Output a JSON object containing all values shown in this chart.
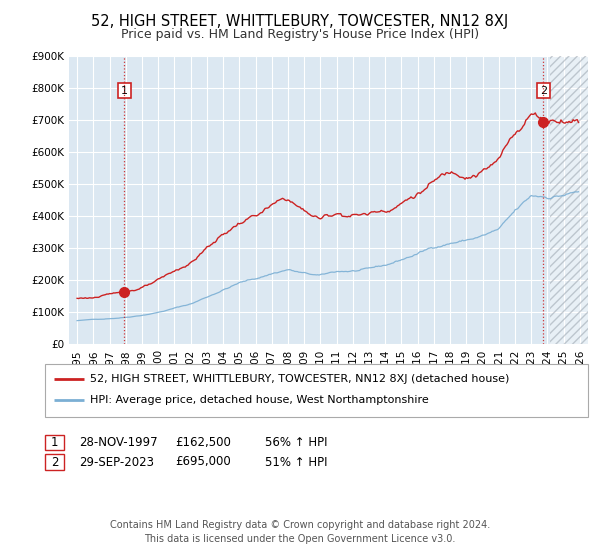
{
  "title": "52, HIGH STREET, WHITTLEBURY, TOWCESTER, NN12 8XJ",
  "subtitle": "Price paid vs. HM Land Registry's House Price Index (HPI)",
  "fig_bg_color": "#ffffff",
  "plot_bg_color": "#dce8f2",
  "hatch_color": "#b0bec8",
  "grid_color": "#ffffff",
  "red_line_color": "#cc2222",
  "blue_line_color": "#7bafd4",
  "vline_color": "#cc2222",
  "point1_x": 1997.92,
  "point1_y": 162500,
  "point2_x": 2023.75,
  "point2_y": 695000,
  "ylim": [
    0,
    900000
  ],
  "xlim": [
    1994.5,
    2026.5
  ],
  "yticks": [
    0,
    100000,
    200000,
    300000,
    400000,
    500000,
    600000,
    700000,
    800000,
    900000
  ],
  "ytick_labels": [
    "£0",
    "£100K",
    "£200K",
    "£300K",
    "£400K",
    "£500K",
    "£600K",
    "£700K",
    "£800K",
    "£900K"
  ],
  "xticks": [
    1995,
    1996,
    1997,
    1998,
    1999,
    2000,
    2001,
    2002,
    2003,
    2004,
    2005,
    2006,
    2007,
    2008,
    2009,
    2010,
    2011,
    2012,
    2013,
    2014,
    2015,
    2016,
    2017,
    2018,
    2019,
    2020,
    2021,
    2022,
    2023,
    2024,
    2025,
    2026
  ],
  "legend_red_label": "52, HIGH STREET, WHITTLEBURY, TOWCESTER, NN12 8XJ (detached house)",
  "legend_blue_label": "HPI: Average price, detached house, West Northamptonshire",
  "table_row1": [
    "1",
    "28-NOV-1997",
    "£162,500",
    "56% ↑ HPI"
  ],
  "table_row2": [
    "2",
    "29-SEP-2023",
    "£695,000",
    "51% ↑ HPI"
  ],
  "footer1": "Contains HM Land Registry data © Crown copyright and database right 2024.",
  "footer2": "This data is licensed under the Open Government Licence v3.0.",
  "title_fontsize": 10.5,
  "subtitle_fontsize": 9,
  "tick_fontsize": 7.5,
  "legend_fontsize": 8,
  "table_fontsize": 8.5,
  "footer_fontsize": 7
}
